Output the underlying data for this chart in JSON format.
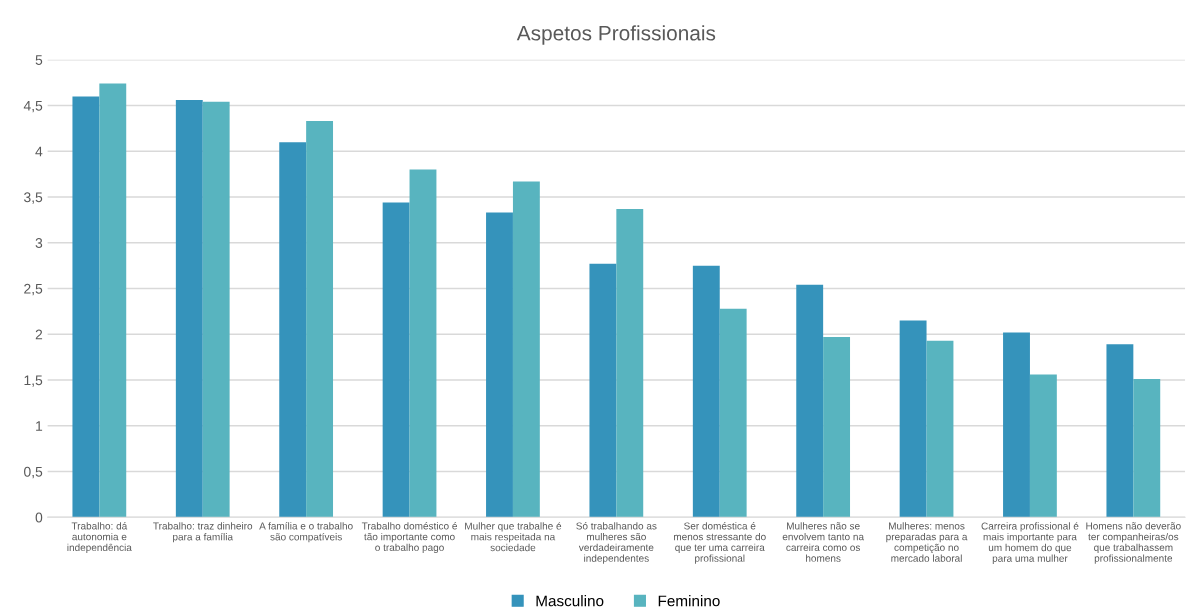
{
  "chart_data": {
    "type": "bar",
    "title": "Aspetos Profissionais",
    "categories": [
      "Trabalho: dá\nautonomia e\nindependência",
      "Trabalho: traz dinheiro\npara a família",
      "A família e o trabalho\nsão compatíveis",
      "Trabalho doméstico é\ntão importante como\no trabalho pago",
      "Mulher que trabalhe é\nmais respeitada na\nsociedade",
      "Só trabalhando as\nmulheres são\nverdadeiramente\nindependentes",
      "Ser doméstica é\nmenos stressante do\nque ter uma carreira\nprofissional",
      "Mulheres não se\nenvolvem tanto na\ncarreira como os\nhomens",
      "Mulheres: menos\npreparadas para a\ncompetição no\nmercado laboral",
      "Carreira profissional é\nmais importante para\num homem do que\npara uma mulher",
      "Homens não deverão\nter companheiras/os\nque trabalhassem\nprofissionalmente"
    ],
    "series": [
      {
        "name": "Masculino",
        "color": "#3593bb",
        "values": [
          4.6,
          4.56,
          4.1,
          3.44,
          3.33,
          2.77,
          2.75,
          2.54,
          2.15,
          2.02,
          1.89
        ]
      },
      {
        "name": "Feminino",
        "color": "#58b4bf",
        "values": [
          4.74,
          4.54,
          4.33,
          3.8,
          3.67,
          3.37,
          2.28,
          1.97,
          1.93,
          1.56,
          1.51
        ]
      }
    ],
    "ylim": [
      0,
      5
    ],
    "yticks": [
      0,
      {
        "value": 0.5,
        "label": "0,5"
      },
      1,
      {
        "value": 1.5,
        "label": "1,5"
      },
      2,
      {
        "value": 2.5,
        "label": "2,5"
      },
      3,
      {
        "value": 3.5,
        "label": "3,5"
      },
      4,
      {
        "value": 4.5,
        "label": "4,5"
      },
      5
    ],
    "grid": "y",
    "legend": "bottom"
  }
}
